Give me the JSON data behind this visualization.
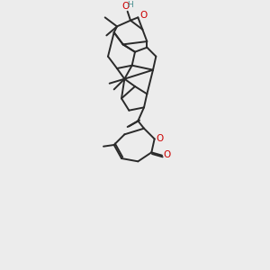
{
  "bg_color": "#ececec",
  "bond_color": "#2a2a2a",
  "oxygen_color": "#cc0000",
  "hydrogen_color": "#4a9090",
  "lw": 1.4,
  "figsize": [
    3.0,
    3.0
  ],
  "dpi": 100,
  "xlim": [
    2.5,
    9.5
  ],
  "ylim": [
    1.0,
    18.5
  ]
}
